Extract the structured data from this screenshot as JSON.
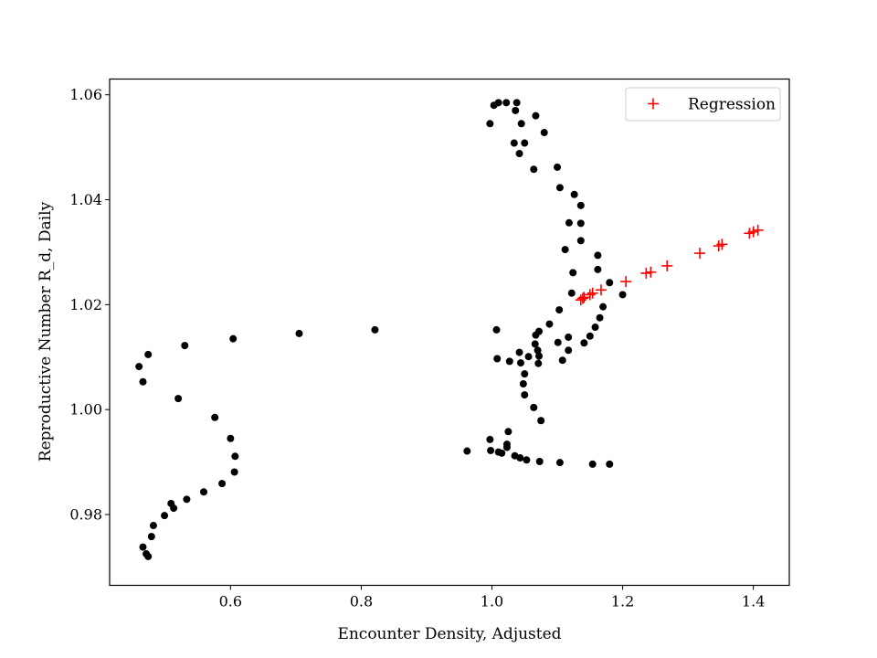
{
  "chart_data": {
    "type": "scatter",
    "title": "",
    "xlabel": "Encounter Density, Adjusted",
    "ylabel": "Reproductive Number R_d, Daily",
    "xlim": [
      0.415,
      1.455
    ],
    "ylim": [
      0.9665,
      1.063
    ],
    "xticks": [
      0.6,
      0.8,
      1.0,
      1.2,
      1.4
    ],
    "xtick_labels": [
      "0.6",
      "0.8",
      "1.0",
      "1.2",
      "1.4"
    ],
    "yticks": [
      0.98,
      1.0,
      1.02,
      1.04,
      1.06
    ],
    "ytick_labels": [
      "0.98",
      "1.00",
      "1.02",
      "1.04",
      "1.06"
    ],
    "grid": false,
    "legend_position": "top-right",
    "series": [
      {
        "marker": "dot",
        "color": "#000000",
        "points": [
          [
            0.997,
            1.0545
          ],
          [
            1.003,
            1.058
          ],
          [
            1.01,
            1.0585
          ],
          [
            1.022,
            1.0585
          ],
          [
            1.038,
            1.0585
          ],
          [
            1.036,
            1.057
          ],
          [
            1.045,
            1.0545
          ],
          [
            1.067,
            1.056
          ],
          [
            1.08,
            1.0528
          ],
          [
            1.034,
            1.0508
          ],
          [
            1.05,
            1.0508
          ],
          [
            1.042,
            1.0488
          ],
          [
            1.1,
            1.0462
          ],
          [
            1.064,
            1.0458
          ],
          [
            1.104,
            1.0423
          ],
          [
            1.126,
            1.041
          ],
          [
            1.136,
            1.0389
          ],
          [
            1.118,
            1.0356
          ],
          [
            1.136,
            1.0355
          ],
          [
            1.136,
            1.0322
          ],
          [
            1.112,
            1.0305
          ],
          [
            1.162,
            1.0294
          ],
          [
            1.162,
            1.0267
          ],
          [
            1.124,
            1.0261
          ],
          [
            1.18,
            1.0242
          ],
          [
            1.122,
            1.0222
          ],
          [
            1.2,
            1.0219
          ],
          [
            1.17,
            1.0196
          ],
          [
            1.165,
            1.0175
          ],
          [
            1.158,
            1.0157
          ],
          [
            1.088,
            1.0163
          ],
          [
            1.103,
            1.019
          ],
          [
            1.007,
            1.0152
          ],
          [
            1.072,
            1.0149
          ],
          [
            1.067,
            1.0142
          ],
          [
            1.117,
            1.0138
          ],
          [
            1.15,
            1.014
          ],
          [
            1.141,
            1.0127
          ],
          [
            1.101,
            1.0128
          ],
          [
            1.066,
            1.0125
          ],
          [
            1.07,
            1.0113
          ],
          [
            1.117,
            1.0113
          ],
          [
            1.042,
            1.0109
          ],
          [
            1.056,
            1.0101
          ],
          [
            1.072,
            1.0102
          ],
          [
            1.108,
            1.0094
          ],
          [
            1.008,
            1.0097
          ],
          [
            1.027,
            1.0092
          ],
          [
            1.044,
            1.0089
          ],
          [
            1.071,
            1.0088
          ],
          [
            1.05,
            1.0068
          ],
          [
            1.048,
            1.0049
          ],
          [
            1.05,
            1.0028
          ],
          [
            1.064,
            1.0004
          ],
          [
            1.075,
            0.9979
          ],
          [
            1.025,
            0.9958
          ],
          [
            0.997,
            0.9943
          ],
          [
            1.023,
            0.9934
          ],
          [
            1.023,
            0.9928
          ],
          [
            0.962,
            0.9921
          ],
          [
            0.998,
            0.9922
          ],
          [
            1.01,
            0.9919
          ],
          [
            1.015,
            0.9917
          ],
          [
            1.035,
            0.9912
          ],
          [
            1.043,
            0.9908
          ],
          [
            1.053,
            0.9904
          ],
          [
            1.073,
            0.9901
          ],
          [
            1.104,
            0.9899
          ],
          [
            1.154,
            0.9896
          ],
          [
            1.18,
            0.9896
          ],
          [
            0.821,
            1.0152
          ],
          [
            0.705,
            1.0145
          ],
          [
            0.604,
            1.0135
          ],
          [
            0.53,
            1.0122
          ],
          [
            0.474,
            1.0105
          ],
          [
            0.46,
            1.0082
          ],
          [
            0.466,
            1.0053
          ],
          [
            0.52,
            1.0021
          ],
          [
            0.576,
            0.9985
          ],
          [
            0.6,
            0.9945
          ],
          [
            0.607,
            0.9911
          ],
          [
            0.606,
            0.9881
          ],
          [
            0.587,
            0.9859
          ],
          [
            0.559,
            0.9843
          ],
          [
            0.533,
            0.9829
          ],
          [
            0.509,
            0.9821
          ],
          [
            0.513,
            0.9812
          ],
          [
            0.499,
            0.9798
          ],
          [
            0.482,
            0.9779
          ],
          [
            0.479,
            0.9758
          ],
          [
            0.466,
            0.9738
          ],
          [
            0.471,
            0.9725
          ],
          [
            0.474,
            0.972
          ]
        ]
      },
      {
        "name": "Regression",
        "marker": "plus",
        "color": "#ff0000",
        "points": [
          [
            1.136,
            1.0209
          ],
          [
            1.139,
            1.0212
          ],
          [
            1.141,
            1.0214
          ],
          [
            1.15,
            1.0219
          ],
          [
            1.154,
            1.0222
          ],
          [
            1.167,
            1.0228
          ],
          [
            1.205,
            1.0244
          ],
          [
            1.236,
            1.026
          ],
          [
            1.243,
            1.0262
          ],
          [
            1.268,
            1.0274
          ],
          [
            1.318,
            1.0298
          ],
          [
            1.347,
            1.0312
          ],
          [
            1.352,
            1.0315
          ],
          [
            1.394,
            1.0336
          ],
          [
            1.4,
            1.0339
          ],
          [
            1.407,
            1.0342
          ]
        ]
      }
    ]
  }
}
